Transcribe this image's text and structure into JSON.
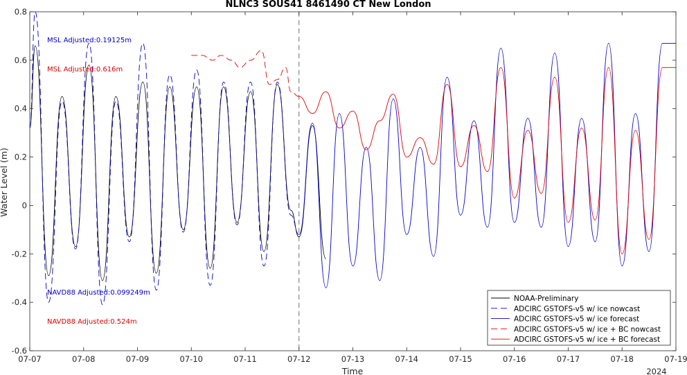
{
  "chart_data": {
    "type": "line",
    "title": "NLNC3 SOUS41 8461490 CT New London",
    "xlabel": "Time",
    "ylabel": "Water Level (m)",
    "x_year_label": "2024",
    "xlim_days": [
      7,
      19
    ],
    "ylim": [
      -0.6,
      0.8
    ],
    "x_ticks": [
      "07-07",
      "07-08",
      "07-09",
      "07-10",
      "07-11",
      "07-12",
      "07-13",
      "07-14",
      "07-15",
      "07-16",
      "07-17",
      "07-18",
      "07-19"
    ],
    "y_ticks": [
      "-0.6",
      "-0.4",
      "-0.2",
      "0",
      "0.2",
      "0.4",
      "0.6",
      "0.8"
    ],
    "nowcast_boundary_day": 12,
    "annotations": {
      "msl_blue": "MSL Adjusted:0.19125m",
      "msl_red": "MSL Adjusted:0.616m",
      "navd_blue": "NAVD88 Adjusted:0.099249m",
      "navd_red": "NAVD88 Adjusted:0.524m"
    },
    "legend_position": "bottom-right",
    "grid": false,
    "colors": {
      "black": "#000000",
      "blue": "#0000cc",
      "red": "#dd0000",
      "boundary": "#6e6e6e"
    },
    "series": [
      {
        "name": "NOAA-Preliminary",
        "style": "solid",
        "color": "#000000",
        "x": [
          7.0,
          7.1,
          7.35,
          7.6,
          7.85,
          8.1,
          8.35,
          8.6,
          8.85,
          9.1,
          9.35,
          9.6,
          9.85,
          10.1,
          10.35,
          10.6,
          10.85,
          11.1,
          11.35,
          11.6,
          11.85,
          12.0,
          12.25,
          12.5
        ],
        "y": [
          0.32,
          0.66,
          -0.29,
          0.45,
          -0.17,
          0.58,
          -0.31,
          0.45,
          -0.13,
          0.51,
          -0.28,
          0.49,
          -0.1,
          0.49,
          -0.26,
          0.49,
          -0.07,
          0.47,
          -0.19,
          0.5,
          -0.02,
          -0.13,
          0.33,
          -0.22
        ]
      },
      {
        "name": "ADCIRC GSTOFS-v5 w/ ice nowcast",
        "style": "dashed",
        "color": "#0000cc",
        "x": [
          7.0,
          7.1,
          7.35,
          7.6,
          7.85,
          8.1,
          8.35,
          8.6,
          8.85,
          9.1,
          9.35,
          9.6,
          9.85,
          10.1,
          10.35,
          10.6,
          10.85,
          11.1,
          11.35,
          11.6,
          11.85,
          12.0
        ],
        "y": [
          0.32,
          0.8,
          -0.4,
          0.43,
          -0.18,
          0.67,
          -0.41,
          0.43,
          -0.15,
          0.67,
          -0.35,
          0.54,
          -0.11,
          0.56,
          -0.33,
          0.51,
          -0.08,
          0.51,
          -0.25,
          0.51,
          -0.04,
          -0.12
        ]
      },
      {
        "name": "ADCIRC GSTOFS-v5 w/ ice forecast",
        "style": "solid",
        "color": "#0000cc",
        "x": [
          12.0,
          12.25,
          12.5,
          12.75,
          13.0,
          13.25,
          13.5,
          13.75,
          14.0,
          14.25,
          14.5,
          14.75,
          15.0,
          15.25,
          15.5,
          15.75,
          16.0,
          16.25,
          16.5,
          16.75,
          17.0,
          17.25,
          17.5,
          17.75,
          18.0,
          18.25,
          18.5,
          18.75,
          19.0
        ],
        "y": [
          -0.12,
          0.34,
          -0.34,
          0.38,
          -0.25,
          0.24,
          -0.31,
          0.44,
          -0.12,
          0.24,
          -0.21,
          0.53,
          -0.04,
          0.35,
          -0.09,
          0.65,
          -0.07,
          0.36,
          -0.09,
          0.63,
          -0.17,
          0.36,
          -0.15,
          0.67,
          -0.25,
          0.38,
          -0.19,
          0.67,
          0.67
        ]
      },
      {
        "name": "ADCIRC GSTOFS-v5 w/ ice + BC nowcast",
        "style": "dashed",
        "color": "#dd0000",
        "x": [
          10.0,
          10.2,
          10.4,
          10.55,
          10.75,
          10.9,
          11.1,
          11.3,
          11.45,
          11.6,
          11.75,
          11.85,
          12.0
        ],
        "y": [
          0.62,
          0.62,
          0.6,
          0.62,
          0.6,
          0.57,
          0.6,
          0.64,
          0.5,
          0.52,
          0.57,
          0.47,
          0.45
        ]
      },
      {
        "name": "ADCIRC GSTOFS-v5 w/ ice + BC forecast",
        "style": "solid",
        "color": "#dd0000",
        "x": [
          12.0,
          12.25,
          12.5,
          12.75,
          13.0,
          13.25,
          13.5,
          13.75,
          14.0,
          14.25,
          14.5,
          14.75,
          15.0,
          15.25,
          15.5,
          15.75,
          16.0,
          16.25,
          16.5,
          16.75,
          17.0,
          17.25,
          17.5,
          17.75,
          18.0,
          18.25,
          18.5,
          18.75,
          19.0
        ],
        "y": [
          0.45,
          0.38,
          0.47,
          0.32,
          0.39,
          0.23,
          0.35,
          0.46,
          0.2,
          0.28,
          0.17,
          0.5,
          0.16,
          0.33,
          0.14,
          0.57,
          0.03,
          0.31,
          0.05,
          0.53,
          -0.07,
          0.32,
          -0.06,
          0.57,
          -0.2,
          0.31,
          -0.14,
          0.57,
          0.57
        ]
      }
    ]
  }
}
